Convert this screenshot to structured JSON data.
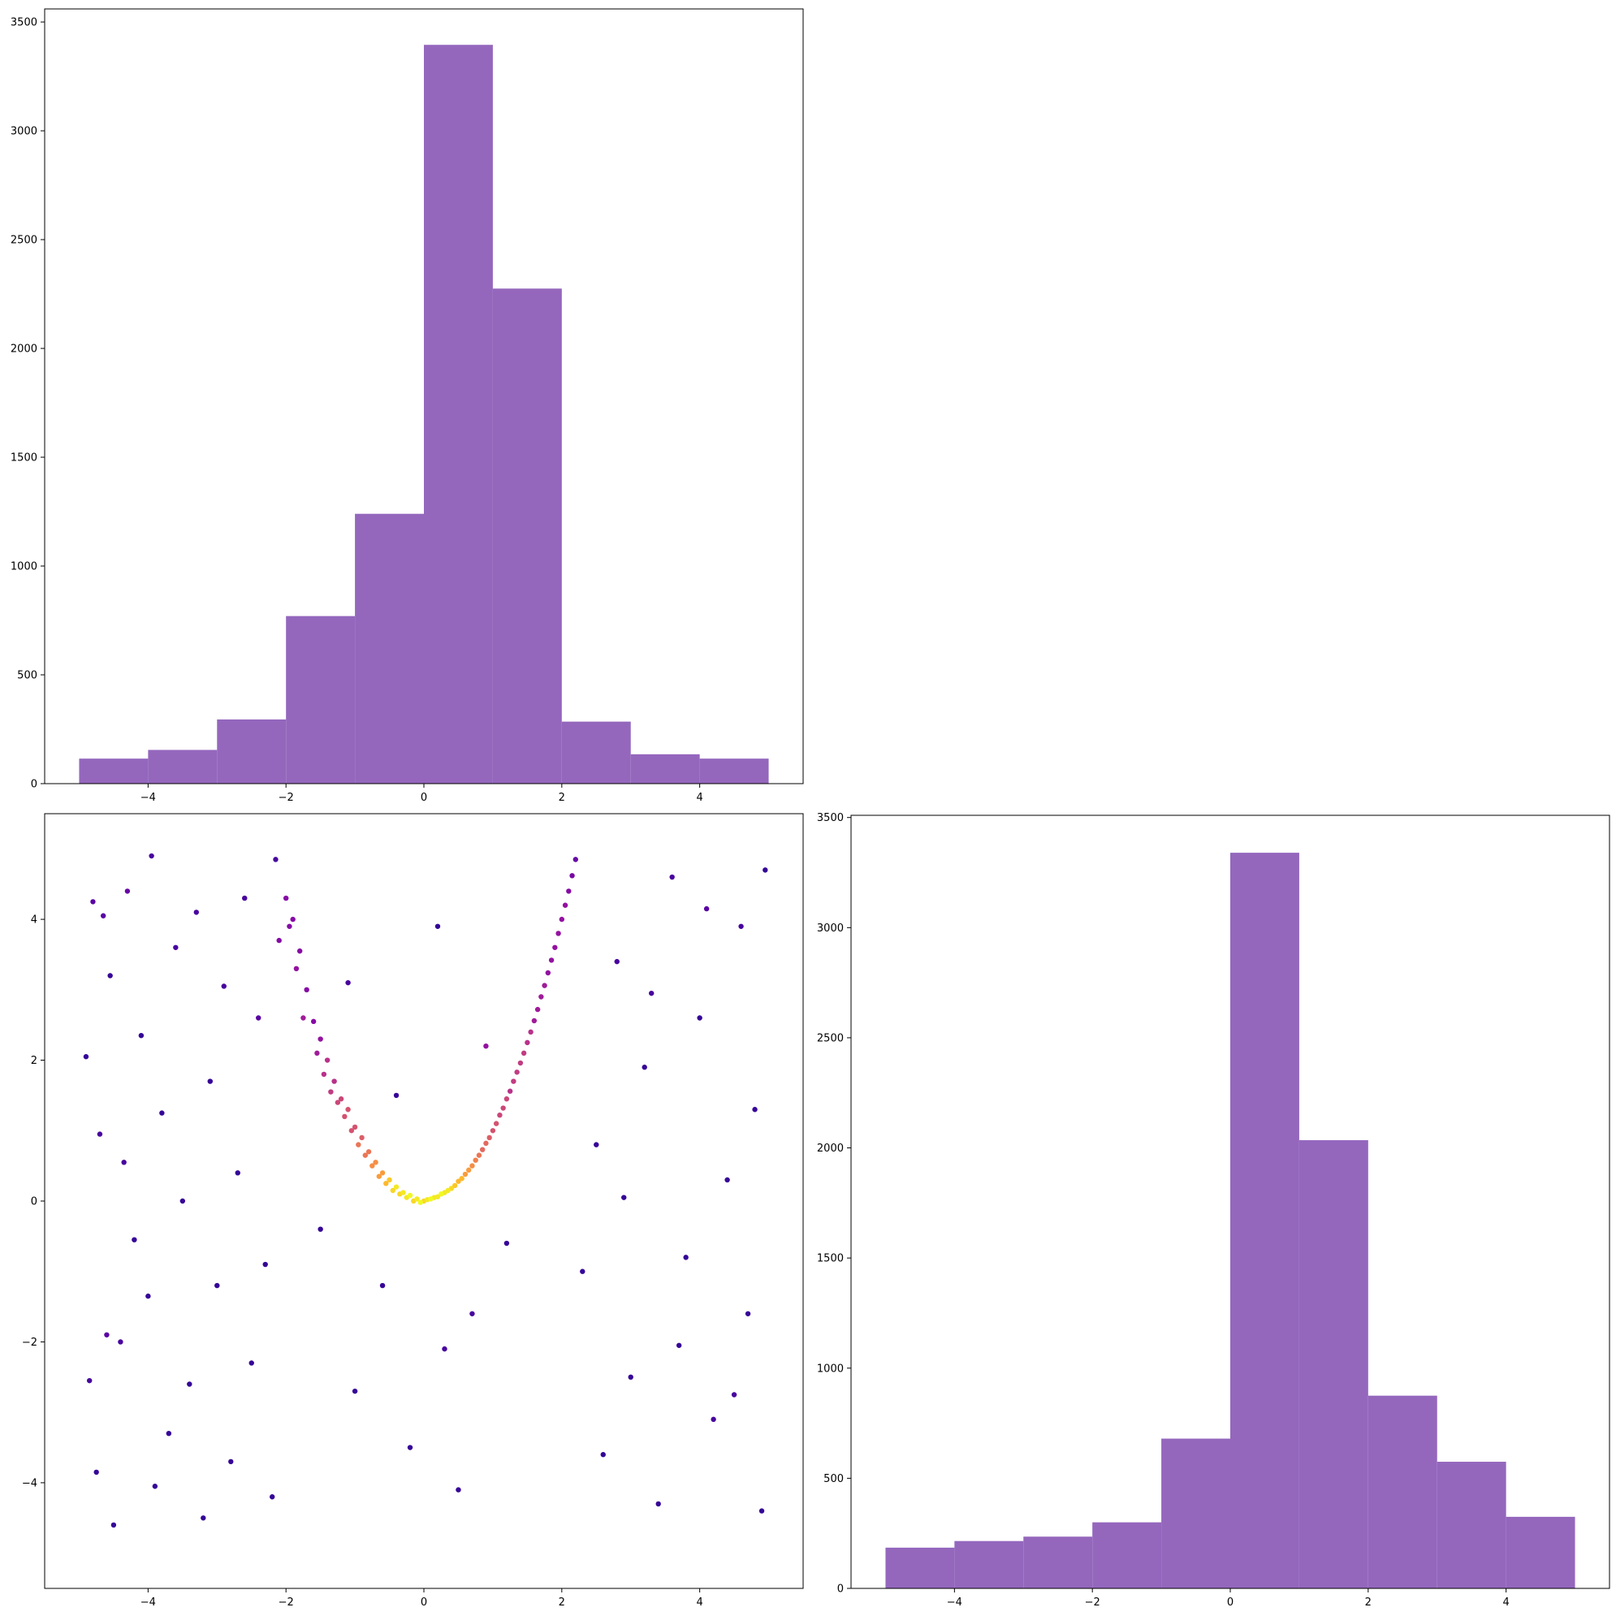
{
  "chart_data": [
    {
      "type": "bar",
      "panel": "top-left",
      "title": "",
      "xlabel": "",
      "ylabel": "",
      "bin_edges": [
        -5,
        -4,
        -3,
        -2,
        -1,
        0,
        1,
        2,
        3,
        4,
        5
      ],
      "values": [
        115,
        155,
        295,
        770,
        1240,
        3395,
        2275,
        285,
        135,
        115
      ],
      "xlim": [
        -5.5,
        5.5
      ],
      "ylim": [
        0,
        3560
      ],
      "xticks": [
        -4,
        -2,
        0,
        2,
        4
      ],
      "xtick_labels": [
        "−4",
        "−2",
        "0",
        "2",
        "4"
      ],
      "yticks": [
        0,
        500,
        1000,
        1500,
        2000,
        2500,
        3000,
        3500
      ],
      "ytick_labels": [
        "0",
        "500",
        "1000",
        "1500",
        "2000",
        "2500",
        "3000",
        "3500"
      ],
      "color": "#9467bd",
      "grid": false
    },
    {
      "type": "scatter",
      "panel": "bottom-left",
      "title": "",
      "xlabel": "",
      "ylabel": "",
      "xlim": [
        -5.5,
        5.5
      ],
      "ylim": [
        -5.5,
        5.5
      ],
      "xticks": [
        -4,
        -2,
        0,
        2,
        4
      ],
      "xtick_labels": [
        "−4",
        "−2",
        "0",
        "2",
        "4"
      ],
      "yticks": [
        -4,
        -2,
        0,
        2,
        4
      ],
      "ytick_labels": [
        "−4",
        "−2",
        "0",
        "2",
        "4"
      ],
      "colormap": "plasma",
      "color_encodes": "point density",
      "distribution": "uniform background on [-5,5]x[-5,5] plus banana-shaped cluster along y = x^2 and a broad cloud around (0, 0)",
      "points": [
        [
          -4.9,
          2.05
        ],
        [
          -4.85,
          -2.55
        ],
        [
          -4.8,
          4.25
        ],
        [
          -4.75,
          -3.85
        ],
        [
          -4.7,
          0.95
        ],
        [
          -4.65,
          4.05
        ],
        [
          -4.6,
          -1.9
        ],
        [
          -4.55,
          3.2
        ],
        [
          -4.5,
          -4.6
        ],
        [
          -4.4,
          -2.0
        ],
        [
          -4.35,
          0.55
        ],
        [
          -4.3,
          4.4
        ],
        [
          -4.2,
          -0.55
        ],
        [
          -4.1,
          2.35
        ],
        [
          -4.0,
          -1.35
        ],
        [
          -3.95,
          4.9
        ],
        [
          -3.9,
          -4.05
        ],
        [
          -3.8,
          1.25
        ],
        [
          -3.7,
          -3.3
        ],
        [
          -3.6,
          3.6
        ],
        [
          -3.5,
          0.0
        ],
        [
          -3.4,
          -2.6
        ],
        [
          -3.3,
          4.1
        ],
        [
          -3.2,
          -4.5
        ],
        [
          -3.1,
          1.7
        ],
        [
          -3.0,
          -1.2
        ],
        [
          -2.9,
          3.05
        ],
        [
          -2.8,
          -3.7
        ],
        [
          -2.7,
          0.4
        ],
        [
          -2.6,
          4.3
        ],
        [
          -2.5,
          -2.3
        ],
        [
          -2.4,
          2.6
        ],
        [
          -2.3,
          -0.9
        ],
        [
          -2.2,
          -4.2
        ],
        [
          -2.15,
          4.85
        ],
        [
          -2.1,
          3.7
        ],
        [
          -2.0,
          4.3
        ],
        [
          -1.95,
          3.9
        ],
        [
          -1.9,
          4.0
        ],
        [
          -1.85,
          3.3
        ],
        [
          -1.8,
          3.55
        ],
        [
          -1.75,
          2.6
        ],
        [
          -1.7,
          3.0
        ],
        [
          -1.6,
          2.55
        ],
        [
          -1.55,
          2.1
        ],
        [
          -1.5,
          2.3
        ],
        [
          -1.45,
          1.8
        ],
        [
          -1.4,
          2.0
        ],
        [
          -1.35,
          1.55
        ],
        [
          -1.3,
          1.7
        ],
        [
          -1.25,
          1.4
        ],
        [
          -1.2,
          1.45
        ],
        [
          -1.15,
          1.2
        ],
        [
          -1.1,
          1.3
        ],
        [
          -1.05,
          1.0
        ],
        [
          -1.0,
          1.05
        ],
        [
          -0.95,
          0.8
        ],
        [
          -0.9,
          0.9
        ],
        [
          -0.85,
          0.65
        ],
        [
          -0.8,
          0.7
        ],
        [
          -0.75,
          0.5
        ],
        [
          -0.7,
          0.55
        ],
        [
          -0.65,
          0.35
        ],
        [
          -0.6,
          0.4
        ],
        [
          -0.55,
          0.25
        ],
        [
          -0.5,
          0.3
        ],
        [
          -0.45,
          0.15
        ],
        [
          -0.4,
          0.2
        ],
        [
          -0.35,
          0.1
        ],
        [
          -0.3,
          0.12
        ],
        [
          -0.25,
          0.05
        ],
        [
          -0.2,
          0.08
        ],
        [
          -0.15,
          0.0
        ],
        [
          -0.1,
          0.03
        ],
        [
          -0.05,
          -0.02
        ],
        [
          0.0,
          0.0
        ],
        [
          0.05,
          0.02
        ],
        [
          0.1,
          0.03
        ],
        [
          0.15,
          0.05
        ],
        [
          0.2,
          0.06
        ],
        [
          0.25,
          0.1
        ],
        [
          0.3,
          0.12
        ],
        [
          0.35,
          0.15
        ],
        [
          0.4,
          0.18
        ],
        [
          0.45,
          0.22
        ],
        [
          0.5,
          0.28
        ],
        [
          0.55,
          0.32
        ],
        [
          0.6,
          0.38
        ],
        [
          0.65,
          0.44
        ],
        [
          0.7,
          0.5
        ],
        [
          0.75,
          0.58
        ],
        [
          0.8,
          0.65
        ],
        [
          0.85,
          0.73
        ],
        [
          0.9,
          0.82
        ],
        [
          0.95,
          0.9
        ],
        [
          1.0,
          1.0
        ],
        [
          1.05,
          1.1
        ],
        [
          1.1,
          1.22
        ],
        [
          1.15,
          1.32
        ],
        [
          1.2,
          1.45
        ],
        [
          1.25,
          1.56
        ],
        [
          1.3,
          1.7
        ],
        [
          1.35,
          1.83
        ],
        [
          1.4,
          1.96
        ],
        [
          1.45,
          2.1
        ],
        [
          1.5,
          2.25
        ],
        [
          1.55,
          2.4
        ],
        [
          1.6,
          2.56
        ],
        [
          1.65,
          2.72
        ],
        [
          1.7,
          2.9
        ],
        [
          1.75,
          3.06
        ],
        [
          1.8,
          3.24
        ],
        [
          1.85,
          3.42
        ],
        [
          1.9,
          3.6
        ],
        [
          1.95,
          3.8
        ],
        [
          2.0,
          4.0
        ],
        [
          2.05,
          4.2
        ],
        [
          2.1,
          4.4
        ],
        [
          2.15,
          4.62
        ],
        [
          2.2,
          4.85
        ],
        [
          -0.6,
          -1.2
        ],
        [
          0.3,
          -2.1
        ],
        [
          -0.2,
          -3.5
        ],
        [
          0.7,
          -1.6
        ],
        [
          -1.0,
          -2.7
        ],
        [
          0.5,
          -4.1
        ],
        [
          -0.4,
          1.5
        ],
        [
          0.9,
          2.2
        ],
        [
          -1.1,
          3.1
        ],
        [
          0.2,
          3.9
        ],
        [
          1.2,
          -0.6
        ],
        [
          -1.5,
          -0.4
        ],
        [
          2.3,
          -1.0
        ],
        [
          2.5,
          0.8
        ],
        [
          2.8,
          3.4
        ],
        [
          3.0,
          -2.5
        ],
        [
          3.2,
          1.9
        ],
        [
          3.4,
          -4.3
        ],
        [
          3.6,
          4.6
        ],
        [
          3.8,
          -0.8
        ],
        [
          4.0,
          2.6
        ],
        [
          4.2,
          -3.1
        ],
        [
          4.4,
          0.3
        ],
        [
          4.6,
          3.9
        ],
        [
          4.7,
          -1.6
        ],
        [
          4.8,
          1.3
        ],
        [
          4.9,
          -4.4
        ],
        [
          4.95,
          4.7
        ],
        [
          2.6,
          -3.6
        ],
        [
          2.9,
          0.05
        ],
        [
          3.3,
          2.95
        ],
        [
          3.7,
          -2.05
        ],
        [
          4.1,
          4.15
        ],
        [
          4.5,
          -2.75
        ]
      ],
      "grid": false
    },
    {
      "type": "bar",
      "panel": "bottom-right",
      "title": "",
      "xlabel": "",
      "ylabel": "",
      "bin_edges": [
        -5,
        -4,
        -3,
        -2,
        -1,
        0,
        1,
        2,
        3,
        4,
        5
      ],
      "values": [
        185,
        215,
        235,
        300,
        680,
        3340,
        2035,
        875,
        575,
        325
      ],
      "xlim": [
        -5.5,
        5.5
      ],
      "ylim": [
        0,
        3510
      ],
      "xticks": [
        -4,
        -2,
        0,
        2,
        4
      ],
      "xtick_labels": [
        "−4",
        "−2",
        "0",
        "2",
        "4"
      ],
      "yticks": [
        0,
        500,
        1000,
        1500,
        2000,
        2500,
        3000,
        3500
      ],
      "ytick_labels": [
        "0",
        "500",
        "1000",
        "1500",
        "2000",
        "2500",
        "3000",
        "3500"
      ],
      "color": "#9467bd",
      "grid": false
    }
  ]
}
